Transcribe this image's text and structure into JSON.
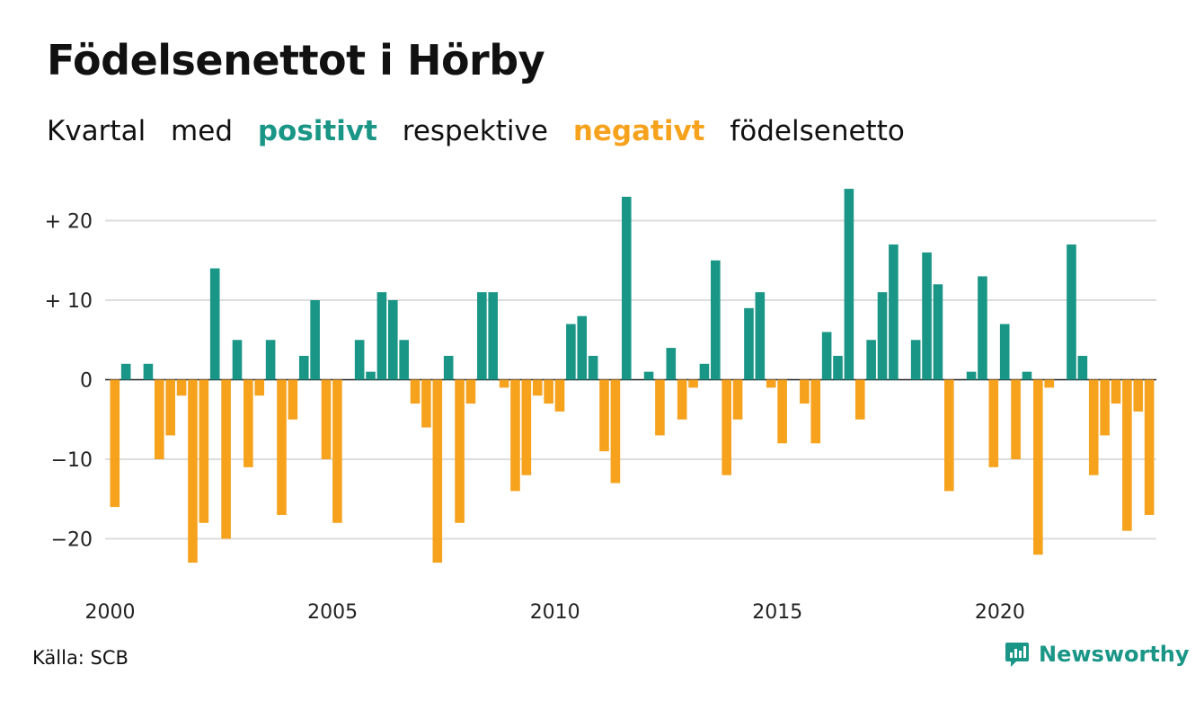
{
  "header": {
    "title": "Födelsenettot i Hörby",
    "subtitle": {
      "w1": "Kvartal",
      "w2": "med",
      "positive": "positivt",
      "w3": "respektive",
      "negative": "negativt",
      "w4": "födelsenetto"
    }
  },
  "colors": {
    "positive": "#1a9687",
    "negative": "#f6a21d",
    "grid": "#dddddd",
    "zero_line": "#222222"
  },
  "footer": {
    "source": "Källa: SCB",
    "brand": "Newsworthy",
    "brand_icon": "newsworthy-logo-icon"
  },
  "chart_data": {
    "type": "bar",
    "title": "Födelsenettot i Hörby",
    "subtitle": "Kvartal med positivt respektive negativt födelsenetto",
    "xlabel": "",
    "ylabel": "",
    "x_start": "2000 Q1",
    "frequency": "quarter",
    "x_ticks": [
      "2000",
      "2005",
      "2010",
      "2015",
      "2020"
    ],
    "y_ticks": [
      {
        "value": 20,
        "label": "+ 20"
      },
      {
        "value": 10,
        "label": "+ 10"
      },
      {
        "value": 0,
        "label": "0"
      },
      {
        "value": -10,
        "label": "−10"
      },
      {
        "value": -20,
        "label": "−20"
      }
    ],
    "ylim": [
      -25,
      25
    ],
    "grid": true,
    "values": [
      -16,
      2,
      0,
      2,
      -10,
      -7,
      -2,
      -23,
      -18,
      14,
      -20,
      5,
      -11,
      -2,
      5,
      -17,
      -5,
      3,
      10,
      -10,
      -18,
      0,
      5,
      1,
      11,
      10,
      5,
      -3,
      -6,
      -23,
      3,
      -18,
      -3,
      11,
      11,
      -1,
      -14,
      -12,
      -2,
      -3,
      -4,
      7,
      8,
      3,
      -9,
      -13,
      23,
      0,
      1,
      -7,
      4,
      -5,
      -1,
      2,
      15,
      -12,
      -5,
      9,
      11,
      -1,
      -8,
      0,
      -3,
      -8,
      6,
      3,
      24,
      -5,
      5,
      11,
      17,
      0,
      5,
      16,
      12,
      -14,
      0,
      1,
      13,
      -11,
      7,
      -10,
      1,
      -22,
      -1,
      0,
      17,
      3,
      -12,
      -7,
      -3,
      -19,
      -4,
      -17
    ]
  }
}
